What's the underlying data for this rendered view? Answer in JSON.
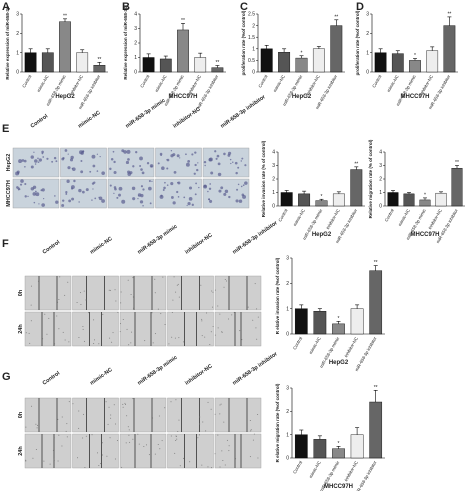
{
  "panels": [
    "A",
    "B",
    "C",
    "D",
    "E",
    "F",
    "G"
  ],
  "image_labels": {
    "columns": [
      "Control",
      "mimic-NC",
      "miR-658-3p mimic",
      "inhibitor-NC",
      "miR-658-3p inhibitor"
    ],
    "cell_rows": [
      "HepG2",
      "MHCC97H"
    ],
    "wound_rows": [
      "0h",
      "24h"
    ]
  },
  "chart_data": [
    {
      "type": "bar",
      "ylabel": "Relative expression of miR-658-3p",
      "xlabel": "HepG2",
      "categories": [
        "Control",
        "mimic-NC",
        "miR-658-3p mimic",
        "inhibitor-NC",
        "miR-658-3p inhibitor"
      ],
      "values": [
        1,
        1,
        2.6,
        1,
        0.35
      ],
      "errors": [
        0.2,
        0.2,
        0.15,
        0.15,
        0.15
      ],
      "colors": [
        "#111111",
        "#555555",
        "#888888",
        "#eeeeee",
        "#666666"
      ],
      "ylim": [
        0,
        3
      ],
      "yticks": [
        0,
        1,
        2,
        3
      ],
      "annotations": [
        {
          "index": 2,
          "text": "**"
        },
        {
          "index": 4,
          "text": "**"
        }
      ]
    },
    {
      "type": "bar",
      "ylabel": "Relative expression of miR-658-3p",
      "xlabel": "MHCC97H",
      "categories": [
        "Control",
        "mimic-NC",
        "miR-658-3p mimic",
        "inhibitor-NC",
        "miR-658-3p inhibitor"
      ],
      "values": [
        1,
        0.9,
        2.9,
        1,
        0.3
      ],
      "errors": [
        0.25,
        0.2,
        0.45,
        0.3,
        0.15
      ],
      "colors": [
        "#111111",
        "#555555",
        "#888888",
        "#eeeeee",
        "#666666"
      ],
      "ylim": [
        0,
        4
      ],
      "yticks": [
        0,
        1,
        2,
        3,
        4
      ],
      "annotations": [
        {
          "index": 2,
          "text": "**"
        },
        {
          "index": 4,
          "text": "**"
        }
      ]
    },
    {
      "type": "bar",
      "ylabel": "proliferation rate (%of control)",
      "xlabel": "HepG2",
      "categories": [
        "Control",
        "mimic-NC",
        "miR-658-3p mimic",
        "inhibitor-NC",
        "miR-658-3p inhibitor"
      ],
      "values": [
        1,
        0.85,
        0.6,
        1,
        2
      ],
      "errors": [
        0.15,
        0.15,
        0.1,
        0.1,
        0.25
      ],
      "colors": [
        "#111111",
        "#555555",
        "#888888",
        "#eeeeee",
        "#666666"
      ],
      "ylim": [
        0,
        2.5
      ],
      "yticks": [
        0,
        0.5,
        1,
        1.5,
        2,
        2.5
      ],
      "annotations": [
        {
          "index": 2,
          "text": "*"
        },
        {
          "index": 4,
          "text": "**"
        }
      ]
    },
    {
      "type": "bar",
      "ylabel": "proliferation rate (%of control)",
      "xlabel": "MHCC97H",
      "categories": [
        "Control",
        "mimic-NC",
        "miR-658-3p mimic",
        "inhibitor-NC",
        "miR-658-3p inhibitor"
      ],
      "values": [
        1,
        0.95,
        0.6,
        1.1,
        2.4
      ],
      "errors": [
        0.2,
        0.15,
        0.1,
        0.2,
        0.45
      ],
      "colors": [
        "#111111",
        "#555555",
        "#888888",
        "#eeeeee",
        "#666666"
      ],
      "ylim": [
        0,
        3
      ],
      "yticks": [
        0,
        1,
        2,
        3
      ],
      "annotations": [
        {
          "index": 2,
          "text": "*"
        },
        {
          "index": 4,
          "text": "**"
        }
      ]
    },
    {
      "type": "bar",
      "ylabel": "Relative invasion rate (% of control)",
      "xlabel": "HepG2",
      "categories": [
        "Control",
        "mimic-NC",
        "miR-658-3p mimic",
        "inhibitor-NC",
        "miR-658-3p inhibitor"
      ],
      "values": [
        1,
        0.9,
        0.4,
        0.9,
        2.7
      ],
      "errors": [
        0.15,
        0.2,
        0.1,
        0.15,
        0.2
      ],
      "colors": [
        "#111111",
        "#555555",
        "#888888",
        "#eeeeee",
        "#666666"
      ],
      "ylim": [
        0,
        4
      ],
      "yticks": [
        0,
        1,
        2,
        3,
        4
      ],
      "annotations": [
        {
          "index": 2,
          "text": "*"
        },
        {
          "index": 4,
          "text": "**"
        }
      ]
    },
    {
      "type": "bar",
      "ylabel": "Relative migration rate (% of control)",
      "xlabel": "MHCC97H",
      "categories": [
        "Control",
        "mimic-NC",
        "miR-658-3p mimic",
        "inhibitor-NC",
        "miR-658-3p inhibitor"
      ],
      "values": [
        1,
        0.9,
        0.45,
        0.95,
        2.8
      ],
      "errors": [
        0.15,
        0.1,
        0.15,
        0.1,
        0.2
      ],
      "colors": [
        "#111111",
        "#555555",
        "#888888",
        "#eeeeee",
        "#666666"
      ],
      "ylim": [
        0,
        4
      ],
      "yticks": [
        0,
        1,
        2,
        3,
        4
      ],
      "annotations": [
        {
          "index": 2,
          "text": "*"
        },
        {
          "index": 4,
          "text": "**"
        }
      ]
    },
    {
      "type": "bar",
      "ylabel": "R elative invasion rate (%of control)",
      "xlabel": "HepG2",
      "categories": [
        "Control",
        "mimic-NC",
        "miR-658-3p mimic",
        "inhibitor-NC",
        "miR-658-3p inhibitor"
      ],
      "values": [
        1,
        0.9,
        0.4,
        1,
        2.5
      ],
      "errors": [
        0.15,
        0.1,
        0.1,
        0.15,
        0.2
      ],
      "colors": [
        "#111111",
        "#555555",
        "#888888",
        "#eeeeee",
        "#666666"
      ],
      "ylim": [
        0,
        3
      ],
      "yticks": [
        0,
        1,
        2,
        3
      ],
      "annotations": [
        {
          "index": 2,
          "text": "*"
        },
        {
          "index": 4,
          "text": "**"
        }
      ]
    },
    {
      "type": "bar",
      "ylabel": "R elative migration rate (%of control)",
      "xlabel": "MHCC97H",
      "categories": [
        "Control",
        "mimic-NC",
        "miR-658-3p mimic",
        "inhibitor-NC",
        "miR-658-3p inhibitor"
      ],
      "values": [
        1,
        0.8,
        0.4,
        1,
        2.4
      ],
      "errors": [
        0.2,
        0.15,
        0.1,
        0.3,
        0.5
      ],
      "colors": [
        "#111111",
        "#555555",
        "#888888",
        "#eeeeee",
        "#666666"
      ],
      "ylim": [
        0,
        3
      ],
      "yticks": [
        0,
        1,
        2,
        3
      ],
      "annotations": [
        {
          "index": 2,
          "text": "*"
        },
        {
          "index": 4,
          "text": "**"
        }
      ]
    }
  ]
}
